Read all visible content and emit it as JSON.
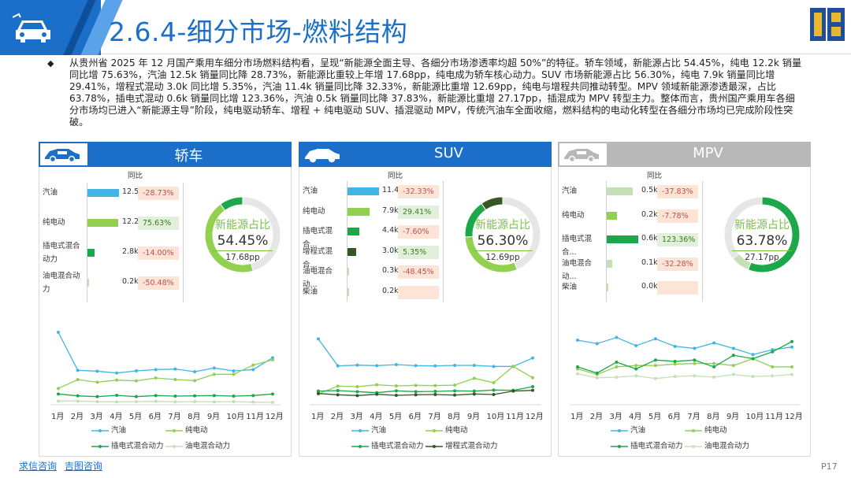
{
  "header": {
    "title": "2.6.4-细分市场-燃料结构",
    "page": "P17"
  },
  "summary": "从贵州省 2025 年 12 月国产乘用车细分市场燃料结构看，呈现“新能源全面主导、各细分市场渗透率均超 50%”的特征。轿车领域，新能源占比 54.45%，纯电 12.2k 销量同比增 75.63%，汽油 12.5k 销量同比降 28.73%，新能源比重较上年增 17.68pp，纯电成为轿车核心动力。SUV 市场新能源占比 56.30%，纯电 7.9k 销量同比增 29.41%，增程式混动 3.0k 同比增 5.35%，汽油 11.4k 销量同比降 32.33%，新能源比重增 12.69pp，纯电与增程共同推动转型。MPV 领域新能源渗透最深，占比 63.78%，插电式混动 0.6k 销量同比增 123.36%，汽油 0.5k 销量同比降 37.83%，新能源比重增 27.17pp，插混成为 MPV 转型主力。整体而言，贵州国产乘用车各细分市场均已进入“新能源主导”阶段，纯电驱动轿车、增程 + 纯电驱动 SUV、插混驱动 MPV，传统汽油车全面收缩，燃料结构的电动化转型在各细分市场均已完成阶段性突破。",
  "footer": {
    "link1": "求信咨询",
    "link2": "吉图咨询"
  },
  "colors": {
    "blue": "#1b6fc8",
    "gasoline": "#41b6e6",
    "bev": "#92d050",
    "phev": "#1ca84a",
    "erev": "#375623",
    "hev": "#c5e0b4",
    "yoy_up": "#e2efda",
    "yoy_down": "#fce4d6"
  },
  "panels": [
    {
      "name": "轿车",
      "yoy_header": "同比",
      "share_title": "新能源占比",
      "share": "54.45%",
      "pp": "17.68pp",
      "rows": [
        {
          "label": [
            "汽油"
          ],
          "value": 12.5,
          "value_label": "12.5k",
          "yoy": "-28.73%",
          "color": "gasoline"
        },
        {
          "label": [
            "纯电动"
          ],
          "value": 12.2,
          "value_label": "12.2k",
          "yoy": "75.63%",
          "color": "bev"
        },
        {
          "label": [
            "插电式混合",
            "动力"
          ],
          "value": 2.8,
          "value_label": "2.8k",
          "yoy": "-14.00%",
          "color": "phev"
        },
        {
          "label": [
            "油电混合动",
            "力"
          ],
          "value": 0.2,
          "value_label": "0.2k",
          "yoy": "-50.48%",
          "color": "hev"
        }
      ],
      "donut": [
        {
          "type": "gasoline",
          "value": 45.55
        },
        {
          "type": "bev",
          "value": 44.42
        },
        {
          "type": "phev",
          "value": 10.03
        }
      ],
      "months": [
        "1月",
        "2月",
        "3月",
        "4月",
        "5月",
        "6月",
        "7月",
        "8月",
        "9月",
        "10月",
        "11月",
        "12月"
      ],
      "series": [
        {
          "name": "汽油",
          "color": "gasoline",
          "values": [
            27,
            12.5,
            12.2,
            11.5,
            12.3,
            12.8,
            13.0,
            12.0,
            13.4,
            12.3,
            12.8,
            17.3
          ]
        },
        {
          "name": "纯电动",
          "color": "bev",
          "values": [
            5.6,
            9.0,
            8.0,
            8.8,
            8.5,
            9.6,
            9.0,
            8.6,
            11.0,
            11.0,
            14.5,
            16.5
          ]
        },
        {
          "name": "插电式混合动力",
          "color": "phev",
          "values": [
            3.5,
            2.8,
            2.5,
            3.0,
            2.5,
            2.9,
            2.7,
            2.8,
            2.9,
            2.7,
            2.9,
            3.5
          ]
        },
        {
          "name": "油电混合动力",
          "color": "hev",
          "values": [
            0.8,
            0.8,
            0.6,
            0.5,
            0.6,
            0.7,
            0.5,
            0.6,
            0.5,
            0.6,
            0.4,
            0.3
          ]
        }
      ],
      "ymax": 30
    },
    {
      "name": "SUV",
      "yoy_header": "同比",
      "share_title": "新能源占比",
      "share": "56.30%",
      "pp": "12.69pp",
      "rows": [
        {
          "label": [
            "汽油"
          ],
          "value": 11.4,
          "value_label": "11.4k",
          "yoy": "-32.33%",
          "color": "gasoline"
        },
        {
          "label": [
            "纯电动"
          ],
          "value": 7.9,
          "value_label": "7.9k",
          "yoy": "29.41%",
          "color": "bev"
        },
        {
          "label": [
            "插电式混合..."
          ],
          "value": 4.4,
          "value_label": "4.4k",
          "yoy": "-7.60%",
          "color": "phev"
        },
        {
          "label": [
            "增程式混合..."
          ],
          "value": 3.0,
          "value_label": "3.0k",
          "yoy": "5.35%",
          "color": "erev"
        },
        {
          "label": [
            "油电混合动..."
          ],
          "value": 0.3,
          "value_label": "0.3k",
          "yoy": "-48.45%",
          "color": "hev"
        },
        {
          "label": [
            "柴油"
          ],
          "value": 0.2,
          "value_label": "0.2k",
          "yoy": "",
          "color": "hev"
        }
      ],
      "donut": [
        {
          "type": "gasoline",
          "value": 43.7
        },
        {
          "type": "bev",
          "value": 30.3
        },
        {
          "type": "phev",
          "value": 16.5
        },
        {
          "type": "erev",
          "value": 9.5
        }
      ],
      "months": [
        "1月",
        "2月",
        "3月",
        "4月",
        "5月",
        "6月",
        "7月",
        "8月",
        "9月",
        "10月",
        "11月",
        "12月"
      ],
      "series": [
        {
          "name": "汽油",
          "color": "gasoline",
          "values": [
            24.5,
            14.2,
            14.5,
            14.3,
            14.7,
            14.3,
            14.2,
            14.4,
            14.4,
            14.0,
            14.0,
            17.2
          ]
        },
        {
          "name": "纯电动",
          "color": "bev",
          "values": [
            3.5,
            6.5,
            6.3,
            7.0,
            6.6,
            6.8,
            6.7,
            6.9,
            9.5,
            7.8,
            14.0,
            9.7
          ]
        },
        {
          "name": "插电式混合动力",
          "color": "phev",
          "values": [
            4.6,
            4.8,
            4.4,
            4.0,
            4.7,
            4.4,
            4.5,
            4.7,
            4.6,
            5.0,
            4.9,
            6.3
          ]
        },
        {
          "name": "增程式混合动力",
          "color": "erev",
          "values": [
            3.7,
            3.2,
            2.9,
            3.4,
            3.0,
            3.2,
            3.3,
            3.1,
            3.5,
            3.3,
            4.6,
            4.9
          ]
        }
      ],
      "ymax": 30
    },
    {
      "name": "MPV",
      "yoy_header": "同比",
      "share_title": "新能源占比",
      "share": "63.78%",
      "pp": "27.17pp",
      "rows": [
        {
          "label": [
            "汽油"
          ],
          "value": 0.5,
          "value_label": "0.5k",
          "yoy": "-37.83%",
          "color": "hev"
        },
        {
          "label": [
            "纯电动"
          ],
          "value": 0.2,
          "value_label": "0.2k",
          "yoy": "-7.78%",
          "color": "bev"
        },
        {
          "label": [
            "插电式混合..."
          ],
          "value": 0.6,
          "value_label": "0.6k",
          "yoy": "123.36%",
          "color": "phev"
        },
        {
          "label": [
            "油电混合动..."
          ],
          "value": 0.1,
          "value_label": "0.1k",
          "yoy": "-32.28%",
          "color": "hev"
        },
        {
          "label": [
            "柴油"
          ],
          "value": 0.0,
          "value_label": "0.0k",
          "yoy": "",
          "color": "hev"
        }
      ],
      "donut": [
        {
          "type": "phev",
          "value": 56
        },
        {
          "type": "hev",
          "value": 8
        },
        {
          "type": "gasoline",
          "value": 36
        }
      ],
      "months": [
        "1月",
        "2月",
        "3月",
        "4月",
        "5月",
        "6月",
        "7月",
        "8月",
        "9月",
        "10月",
        "11月",
        "12月"
      ],
      "series": [
        {
          "name": "汽油",
          "color": "gasoline",
          "values": [
            0.92,
            0.87,
            0.96,
            0.84,
            0.94,
            0.83,
            0.8,
            0.88,
            0.8,
            0.71,
            0.78,
            0.82
          ]
        },
        {
          "name": "纯电动",
          "color": "bev",
          "values": [
            0.5,
            0.42,
            0.53,
            0.55,
            0.55,
            0.57,
            0.58,
            0.58,
            0.55,
            0.65,
            0.53,
            0.53
          ]
        },
        {
          "name": "插电式混合动力",
          "color": "phev",
          "values": [
            0.53,
            0.44,
            0.6,
            0.5,
            0.63,
            0.61,
            0.63,
            0.53,
            0.7,
            0.65,
            0.75,
            0.9
          ]
        },
        {
          "name": "油电混合动力",
          "color": "hev",
          "values": [
            0.43,
            0.37,
            0.38,
            0.4,
            0.36,
            0.39,
            0.4,
            0.38,
            0.42,
            0.39,
            0.4,
            0.42
          ]
        }
      ],
      "ymax": 1.15
    }
  ],
  "chart_data": [
    {
      "type": "bar",
      "title": "轿车",
      "categories": [
        "汽油",
        "纯电动",
        "插电式混合动力",
        "油电混合动力"
      ],
      "values": [
        12.5,
        12.2,
        2.8,
        0.2
      ],
      "yoy": [
        "-28.73%",
        "75.63%",
        "-14.00%",
        "-50.48%"
      ]
    },
    {
      "type": "bar",
      "title": "SUV",
      "categories": [
        "汽油",
        "纯电动",
        "插电式混合...",
        "增程式混合...",
        "油电混合动...",
        "柴油"
      ],
      "values": [
        11.4,
        7.9,
        4.4,
        3.0,
        0.3,
        0.2
      ],
      "yoy": [
        "-32.33%",
        "29.41%",
        "-7.60%",
        "5.35%",
        "-48.45%",
        ""
      ]
    },
    {
      "type": "bar",
      "title": "MPV",
      "categories": [
        "汽油",
        "纯电动",
        "插电式混合...",
        "油电混合动...",
        "柴油"
      ],
      "values": [
        0.5,
        0.2,
        0.6,
        0.1,
        0.0
      ],
      "yoy": [
        "-37.83%",
        "-7.78%",
        "123.36%",
        "-32.28%",
        ""
      ]
    }
  ]
}
